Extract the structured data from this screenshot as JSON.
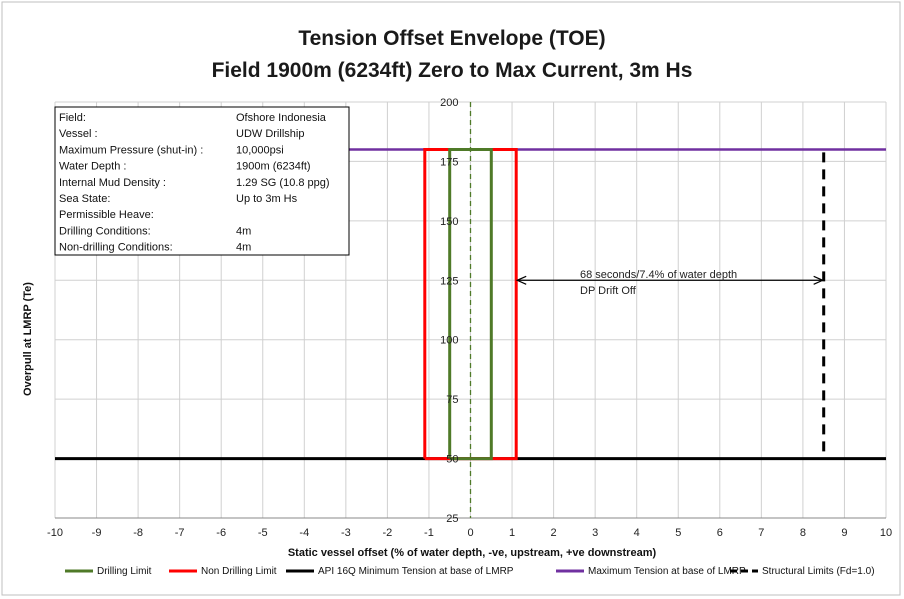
{
  "chart_data": {
    "type": "line",
    "title": "Tension Offset Envelope (TOE)",
    "subtitle": "Field 1900m (6234ft) Zero to Max Current, 3m Hs",
    "xlabel": "Static vessel offset (% of water depth, -ve, upstream, +ve downstream)",
    "ylabel": "Overpull at LMRP (Te)",
    "xlim": [
      -10,
      10
    ],
    "ylim": [
      25,
      200
    ],
    "xticks": [
      -10,
      -9,
      -8,
      -7,
      -6,
      -5,
      -4,
      -3,
      -2,
      -1,
      0,
      1,
      2,
      3,
      4,
      5,
      6,
      7,
      8,
      9,
      10
    ],
    "yticks": [
      25,
      50,
      75,
      100,
      125,
      150,
      175,
      200
    ],
    "grid": true,
    "legend_position": "bottom",
    "series": [
      {
        "name": "Drilling Limit",
        "color": "#4f7a28",
        "dash": "solid",
        "x": [
          -0.5,
          -0.5,
          0.5,
          0.5,
          -0.5
        ],
        "y": [
          50,
          180,
          180,
          50,
          50
        ]
      },
      {
        "name": "Non Drilling Limit",
        "color": "#ff0000",
        "dash": "solid",
        "x": [
          -1.1,
          -1.1,
          1.1,
          1.1,
          -1.1
        ],
        "y": [
          50,
          180,
          180,
          50,
          50
        ]
      },
      {
        "name": "API 16Q Minimum Tension at base of LMRP",
        "color": "#000000",
        "dash": "solid",
        "x": [
          -10,
          10
        ],
        "y": [
          50,
          50
        ]
      },
      {
        "name": "Maximum Tension at base of LMRP",
        "color": "#7030a0",
        "dash": "solid",
        "x": [
          -10,
          10
        ],
        "y": [
          180,
          180
        ]
      },
      {
        "name": "Structural Limits (Fd=1.0)",
        "color": "#000000",
        "dash": "dashed",
        "x": [
          8.5,
          8.5
        ],
        "y": [
          53,
          180
        ]
      }
    ],
    "zero_line": {
      "x": 0,
      "color": "#4f7a28"
    },
    "annotation": {
      "line1": "68 seconds/7.4% of water depth",
      "line2": "DP Drift Off",
      "arrow_from_x": 1.1,
      "arrow_to_x": 8.5,
      "arrow_y": 125
    },
    "info_box": [
      {
        "label": "Field:",
        "value": "Ofshore Indonesia"
      },
      {
        "label": "Vessel :",
        "value": "UDW Drillship"
      },
      {
        "label": "Maximum Pressure (shut-in) :",
        "value": "10,000psi"
      },
      {
        "label": "Water Depth :",
        "value": "1900m (6234ft)"
      },
      {
        "label": "Internal Mud Density :",
        "value": "1.29 SG (10.8 ppg)"
      },
      {
        "label": "Sea State:",
        "value": "Up to 3m Hs"
      },
      {
        "label": "Permissible Heave:",
        "value": ""
      },
      {
        "label": "Drilling Conditions:",
        "value": "4m"
      },
      {
        "label": "Non-drilling Conditions:",
        "value": "4m"
      }
    ]
  }
}
